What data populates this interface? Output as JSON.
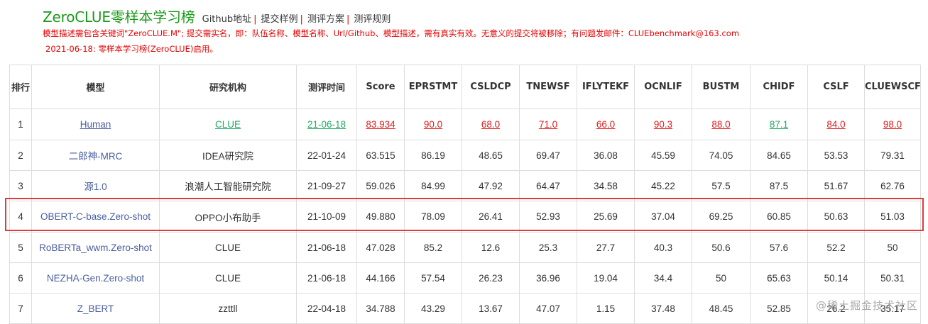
{
  "header": {
    "title": "ZeroCLUE零样本学习榜",
    "nav": [
      {
        "label": "Github地址"
      },
      {
        "label": "提交样例"
      },
      {
        "label": "测评方案"
      },
      {
        "label": "测评规则"
      }
    ],
    "nav_separator": "|",
    "notice_lines": [
      "模型描述需包含关键词\"ZeroCLUE.M\"; 提交需实名，即：队伍名称、模型名称、Url/Github、模型描述，需有真实有效。无意义的提交将被移除；有问题发邮件：CLUEbenchmark@163.com",
      "2021-06-18: 零样本学习榜(ZeroCLUE)启用。"
    ]
  },
  "table": {
    "columns": [
      "排行",
      "模型",
      "研究机构",
      "测评时间",
      "Score",
      "EPRSTMT",
      "CSLDCP",
      "TNEWSF",
      "IFLYTEKF",
      "OCNLIF",
      "BUSTM",
      "CHIDF",
      "CSLF",
      "CLUEWSCF"
    ],
    "rows": [
      {
        "rank": "1",
        "model": "Human",
        "org": "CLUE",
        "date": "21-06-18",
        "score": "83.934",
        "eprstmt": "90.0",
        "csldcp": "68.0",
        "tnewsf": "71.0",
        "iflytekf": "66.0",
        "ocnlif": "90.3",
        "bustm": "88.0",
        "chidf": "87.1",
        "cslf": "84.0",
        "cluewscf": "98.0"
      },
      {
        "rank": "2",
        "model": "二郎神-MRC",
        "org": "IDEA研究院",
        "date": "22-01-24",
        "score": "63.515",
        "eprstmt": "86.19",
        "csldcp": "48.65",
        "tnewsf": "69.47",
        "iflytekf": "36.08",
        "ocnlif": "45.59",
        "bustm": "74.05",
        "chidf": "84.65",
        "cslf": "53.53",
        "cluewscf": "79.31"
      },
      {
        "rank": "3",
        "model": "源1.0",
        "org": "浪潮人工智能研究院",
        "date": "21-09-27",
        "score": "59.026",
        "eprstmt": "84.99",
        "csldcp": "47.92",
        "tnewsf": "64.47",
        "iflytekf": "34.58",
        "ocnlif": "45.22",
        "bustm": "57.5",
        "chidf": "87.5",
        "cslf": "51.67",
        "cluewscf": "62.76"
      },
      {
        "rank": "4",
        "model": "OBERT-C-base.Zero-shot",
        "org": "OPPO小布助手",
        "date": "21-10-09",
        "score": "49.880",
        "eprstmt": "78.09",
        "csldcp": "26.41",
        "tnewsf": "52.93",
        "iflytekf": "25.69",
        "ocnlif": "37.04",
        "bustm": "69.25",
        "chidf": "60.85",
        "cslf": "50.63",
        "cluewscf": "51.03"
      },
      {
        "rank": "5",
        "model": "RoBERTa_wwm.Zero-shot",
        "org": "CLUE",
        "date": "21-06-18",
        "score": "47.028",
        "eprstmt": "85.2",
        "csldcp": "12.6",
        "tnewsf": "25.3",
        "iflytekf": "27.7",
        "ocnlif": "40.3",
        "bustm": "50.6",
        "chidf": "57.6",
        "cslf": "52.2",
        "cluewscf": "50"
      },
      {
        "rank": "6",
        "model": "NEZHA-Gen.Zero-shot",
        "org": "CLUE",
        "date": "21-06-18",
        "score": "44.166",
        "eprstmt": "57.54",
        "csldcp": "26.23",
        "tnewsf": "36.96",
        "iflytekf": "19.04",
        "ocnlif": "34.4",
        "bustm": "50",
        "chidf": "65.63",
        "cslf": "50.14",
        "cluewscf": "50.31"
      },
      {
        "rank": "7",
        "model": "Z_BERT",
        "org": "zzttll",
        "date": "22-04-18",
        "score": "34.788",
        "eprstmt": "43.29",
        "csldcp": "13.67",
        "tnewsf": "47.07",
        "iflytekf": "1.15",
        "ocnlif": "37.48",
        "bustm": "48.45",
        "chidf": "52.85",
        "cslf": "26.2",
        "cluewscf": "35.17"
      }
    ]
  },
  "watermark": "@稀土掘金技术社区",
  "colors": {
    "title_green": "#1a9a1a",
    "notice_red": "#e60000",
    "link_blue": "#4a5fa0",
    "link_green": "#22aa66",
    "best_red": "#e02020",
    "highlight_border": "#e03b3b"
  }
}
